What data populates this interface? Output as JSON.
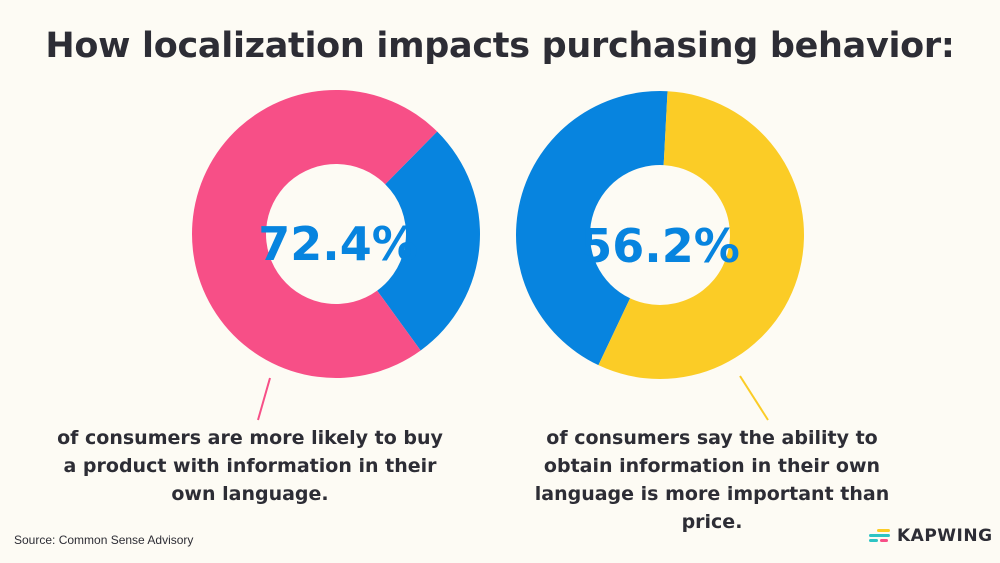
{
  "title": "How localization impacts purchasing behavior:",
  "chart_data": [
    {
      "type": "pie",
      "variant": "donut",
      "center_label": "72.4%",
      "values": [
        72.4,
        27.6
      ],
      "colors": [
        "#F74F87",
        "#0784DF"
      ],
      "caption": "of consumers are more likely to buy a product with information in their own language."
    },
    {
      "type": "pie",
      "variant": "donut",
      "center_label": "56.2%",
      "values": [
        56.2,
        43.8
      ],
      "colors": [
        "#FBCC26",
        "#0784DF"
      ],
      "caption": "of consumers say the ability to obtain information in their own language is more important than price."
    }
  ],
  "source": "Source: Common Sense Advisory",
  "logo": {
    "text": "KAPWING",
    "colors": [
      "#FBCC26",
      "#2EC4C4",
      "#F74F87"
    ]
  },
  "colors": {
    "background": "#FDFBF4",
    "text": "#2D2D35",
    "label": "#0784DF"
  }
}
